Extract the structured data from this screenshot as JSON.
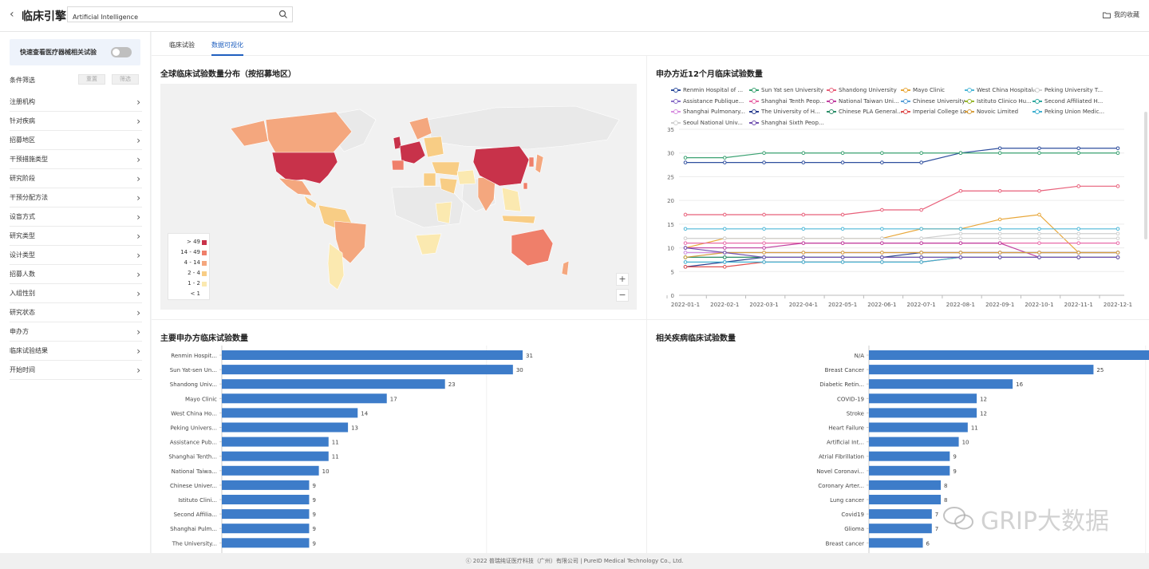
{
  "header": {
    "back_icon": "chevron-left-icon",
    "title": "临床引擎",
    "search_value": "Artificial Intelligence",
    "favorites_label": "我的收藏"
  },
  "sidebar": {
    "quick_label": "快速查看医疗器械相关试验",
    "filter_title": "条件筛选",
    "reset_label": "重置",
    "filter_label": "筛选",
    "filters": [
      "注册机构",
      "针对疾病",
      "招募地区",
      "干预措施类型",
      "研究阶段",
      "干预分配方法",
      "设盲方式",
      "研究类型",
      "设计类型",
      "招募人数",
      "入组性别",
      "研究状态",
      "申办方",
      "临床试验结果",
      "开始时间"
    ]
  },
  "tabs": [
    {
      "label": "临床试验",
      "active": false
    },
    {
      "label": "数据可视化",
      "active": true
    }
  ],
  "map_panel": {
    "title": "全球临床试验数量分布（按招募地区）",
    "legend": [
      {
        "label": "> 49",
        "color": "#c8324a"
      },
      {
        "label": "14 - 49",
        "color": "#ef7f6a"
      },
      {
        "label": "4 - 14",
        "color": "#f4a77e"
      },
      {
        "label": "2 - 4",
        "color": "#f8cd85"
      },
      {
        "label": "1 - 2",
        "color": "#fbe9b0"
      },
      {
        "label": "< 1",
        "color": "#ffffff"
      }
    ],
    "zoom_in": "+",
    "zoom_out": "−"
  },
  "line_panel": {
    "title": "申办方近12个月临床试验数量"
  },
  "chart_data": [
    {
      "type": "line",
      "title": "申办方近12个月临床试验数量",
      "x": [
        "2022-01-1",
        "2022-02-1",
        "2022-03-1",
        "2022-04-1",
        "2022-05-1",
        "2022-06-1",
        "2022-07-1",
        "2022-08-1",
        "2022-09-1",
        "2022-10-1",
        "2022-11-1",
        "2022-12-1"
      ],
      "ylim": [
        0,
        35
      ],
      "yticks": [
        0,
        5,
        10,
        15,
        20,
        25,
        30,
        35
      ],
      "series": [
        {
          "name": "Renmin Hospital of ...",
          "color": "#2f4f9e",
          "values": [
            28,
            28,
            28,
            28,
            28,
            28,
            28,
            30,
            31,
            31,
            31,
            31
          ]
        },
        {
          "name": "Sun Yat sen University",
          "color": "#3ba272",
          "values": [
            29,
            29,
            30,
            30,
            30,
            30,
            30,
            30,
            30,
            30,
            30,
            30
          ]
        },
        {
          "name": "Shandong University",
          "color": "#e8607a",
          "values": [
            17,
            17,
            17,
            17,
            17,
            18,
            18,
            22,
            22,
            22,
            23,
            23
          ]
        },
        {
          "name": "Mayo Clinic",
          "color": "#e8a73a",
          "values": [
            10,
            12,
            12,
            12,
            12,
            12,
            14,
            14,
            16,
            17,
            9,
            9
          ]
        },
        {
          "name": "West China Hospital...",
          "color": "#4fb8d8",
          "values": [
            14,
            14,
            14,
            14,
            14,
            14,
            14,
            14,
            14,
            14,
            14,
            14
          ]
        },
        {
          "name": "Peking University T...",
          "color": "#cfcfcf",
          "values": [
            12,
            12,
            12,
            12,
            12,
            12,
            12,
            13,
            13,
            13,
            13,
            13
          ]
        },
        {
          "name": "Assistance Publique...",
          "color": "#8a6fc8",
          "values": [
            8,
            8,
            8,
            8,
            8,
            8,
            8,
            8,
            8,
            8,
            8,
            8
          ]
        },
        {
          "name": "Shanghai Tenth Peop...",
          "color": "#e86aa8",
          "values": [
            11,
            11,
            11,
            11,
            11,
            11,
            11,
            11,
            11,
            11,
            11,
            11
          ]
        },
        {
          "name": "National Taiwan Uni...",
          "color": "#c040a0",
          "values": [
            10,
            10,
            10,
            11,
            11,
            11,
            11,
            11,
            11,
            8,
            8,
            8
          ]
        },
        {
          "name": "Chinese University ...",
          "color": "#5aa0d8",
          "values": [
            9,
            9,
            9,
            9,
            9,
            9,
            9,
            9,
            9,
            9,
            9,
            9
          ]
        },
        {
          "name": "Istituto Clinico Hu...",
          "color": "#9ab830",
          "values": [
            8,
            8,
            8,
            8,
            8,
            8,
            8,
            8,
            8,
            8,
            8,
            8
          ]
        },
        {
          "name": "Second Affiliated H...",
          "color": "#30a8a0",
          "values": [
            8,
            8,
            8,
            8,
            8,
            8,
            8,
            8,
            8,
            8,
            8,
            8
          ]
        },
        {
          "name": "Shanghai Pulmonary...",
          "color": "#d890e0",
          "values": [
            9,
            9,
            9,
            9,
            9,
            9,
            9,
            9,
            9,
            9,
            9,
            9
          ]
        },
        {
          "name": "The University of H...",
          "color": "#2a3f8f",
          "values": [
            6,
            7,
            8,
            8,
            8,
            8,
            9,
            9,
            9,
            9,
            9,
            9
          ]
        },
        {
          "name": "Chinese PLA General...",
          "color": "#2e8f6a",
          "values": [
            8,
            8,
            8,
            8,
            8,
            8,
            8,
            8,
            8,
            8,
            8,
            8
          ]
        },
        {
          "name": "Imperial College Lo...",
          "color": "#e05050",
          "values": [
            6,
            6,
            7,
            7,
            7,
            7,
            7,
            8,
            8,
            8,
            8,
            8
          ]
        },
        {
          "name": "Novoic Limited",
          "color": "#d8a040",
          "values": [
            8,
            9,
            9,
            9,
            9,
            9,
            9,
            9,
            9,
            9,
            9,
            9
          ]
        },
        {
          "name": "Peking Union Medic...",
          "color": "#40b0d0",
          "values": [
            7,
            7,
            7,
            7,
            7,
            7,
            7,
            8,
            8,
            8,
            8,
            8
          ]
        },
        {
          "name": "Seoul National Univ...",
          "color": "#d0d0d0",
          "values": [
            12,
            12,
            12,
            12,
            12,
            12,
            12,
            12,
            12,
            12,
            12,
            12
          ]
        },
        {
          "name": "Shanghai Sixth Peop...",
          "color": "#7050b0",
          "values": [
            10,
            9,
            8,
            8,
            8,
            8,
            8,
            8,
            8,
            8,
            8,
            8
          ]
        }
      ]
    },
    {
      "type": "bar",
      "title": "主要申办方临床试验数量",
      "categories": [
        "Renmin Hospit...",
        "Sun Yat-sen Un...",
        "Shandong Univ...",
        "Mayo Clinic",
        "West China Ho...",
        "Peking Univers...",
        "Assistance Pub...",
        "Shanghai Tenth...",
        "National Taiwa...",
        "Chinese Univer...",
        "Istituto Clini...",
        "Second Affilia...",
        "Shanghai Pulm...",
        "The University..."
      ],
      "values": [
        31,
        30,
        23,
        17,
        14,
        13,
        11,
        11,
        10,
        9,
        9,
        9,
        9,
        9
      ]
    },
    {
      "type": "bar",
      "title": "相关疾病临床试验数量",
      "categories": [
        "N/A",
        "Breast Cancer",
        "Diabetic Retin...",
        "COVID-19",
        "Stroke",
        "Heart Failure",
        "Artificial Int...",
        "Atrial Fibrillation",
        "Novel Coronavi...",
        "Coronary Arter...",
        "Lung cancer",
        "Covid19",
        "Glioma",
        "Breast cancer"
      ],
      "values": [
        35,
        25,
        16,
        12,
        12,
        11,
        10,
        9,
        9,
        8,
        8,
        7,
        7,
        6
      ]
    }
  ],
  "footer": "ⓒ 2022 普瑞纯证医疗科技（广州）有限公司 | PureID Medical Technology Co., Ltd.",
  "watermark": "GRIP大数据"
}
